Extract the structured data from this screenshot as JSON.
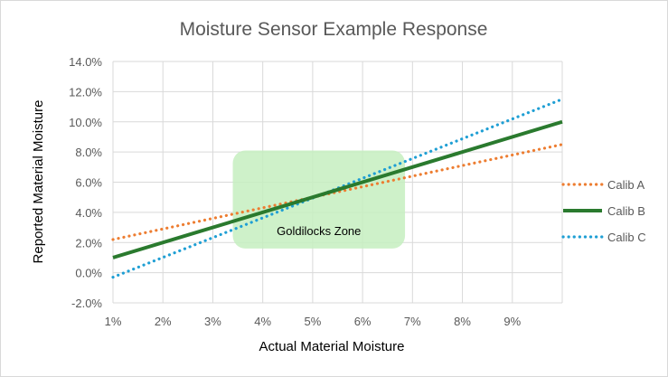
{
  "chart_data": {
    "type": "line",
    "title": "Moisture Sensor Example Response",
    "xlabel": "Actual Material Moisture",
    "ylabel": "Reported  Material Moisture",
    "x_ticks": [
      "1%",
      "2%",
      "3%",
      "4%",
      "5%",
      "6%",
      "7%",
      "8%",
      "9%"
    ],
    "y_ticks": [
      "14.0%",
      "12.0%",
      "10.0%",
      "8.0%",
      "6.0%",
      "4.0%",
      "2.0%",
      "0.0%",
      "-2.0%"
    ],
    "xlim": [
      1,
      10
    ],
    "ylim": [
      -2,
      14
    ],
    "grid": true,
    "legend_position": "right",
    "series": [
      {
        "name": "Calib A",
        "x": [
          1,
          10
        ],
        "y": [
          2.2,
          8.5
        ],
        "color": "#ed7d31",
        "style": "dotted"
      },
      {
        "name": "Calib B",
        "x": [
          1,
          10
        ],
        "y": [
          1.0,
          10.0
        ],
        "color": "#2a7a2e",
        "style": "solid"
      },
      {
        "name": "Calib C",
        "x": [
          1,
          10
        ],
        "y": [
          -0.3,
          11.5
        ],
        "color": "#1f9fd4",
        "style": "dotted"
      }
    ],
    "annotation": {
      "label": "Goldilocks Zone",
      "x_range": [
        3.4,
        6.85
      ],
      "y_range": [
        1.6,
        8.1
      ],
      "color": "#c6efc0"
    }
  }
}
